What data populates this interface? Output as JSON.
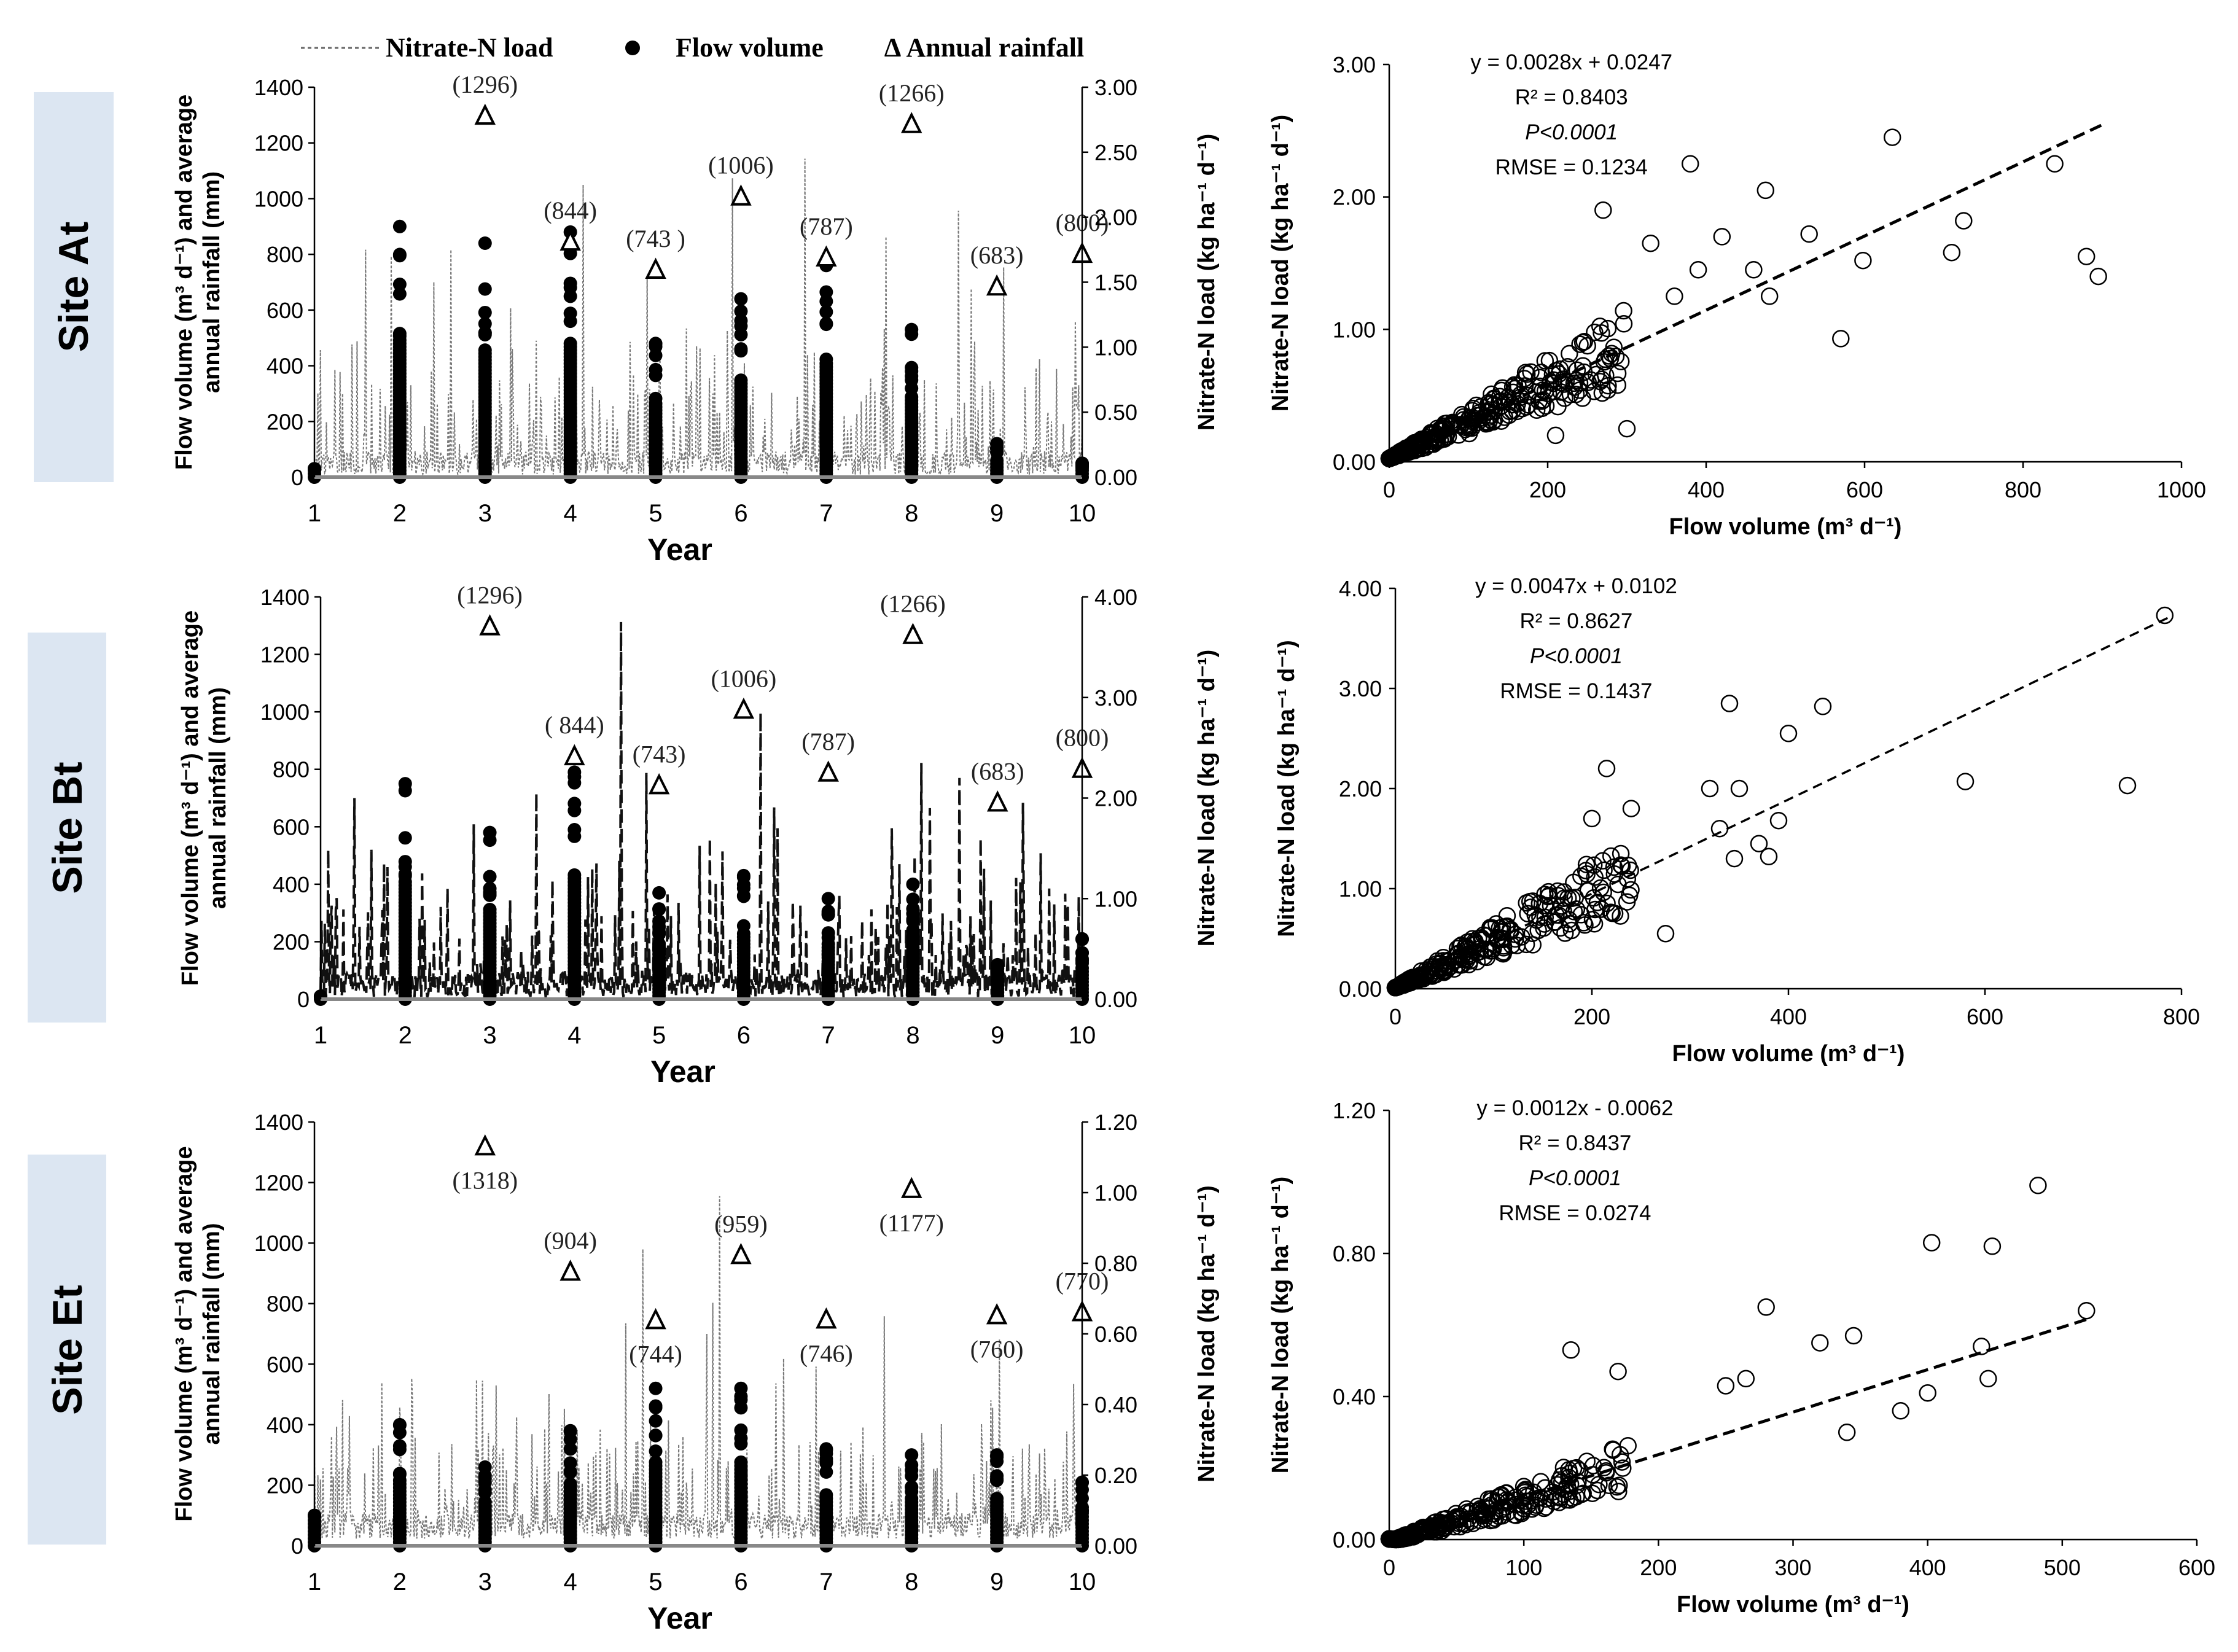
{
  "legend": {
    "nitrate": "Nitrate-N load",
    "flow": "Flow volume",
    "rainfall": "∆ Annual rainfall"
  },
  "sites": [
    {
      "label": "Site At"
    },
    {
      "label": "Site Bt"
    },
    {
      "label": "Site Et"
    }
  ],
  "chart_data": [
    {
      "type": "line",
      "site": "Site At",
      "xlabel": "Year",
      "ylabel_left": "Flow volume (m³ d⁻¹) and average annual rainfall (mm)",
      "ylabel_right": "Nitrate-N load (kg ha⁻¹ d⁻¹)",
      "xticks": [
        "1",
        "2",
        "3",
        "4",
        "5",
        "6",
        "7",
        "8",
        "9",
        "10"
      ],
      "yticks_left": [
        "0",
        "200",
        "400",
        "600",
        "800",
        "1000",
        "1200",
        "1400"
      ],
      "yticks_right": [
        "0.00",
        "0.50",
        "1.00",
        "1.50",
        "2.00",
        "2.50",
        "3.00"
      ],
      "ylim_left": [
        0,
        1400
      ],
      "ylim_right": [
        0,
        3.0
      ],
      "nitrate_style": "dotted",
      "rainfall": [
        {
          "year": 3,
          "value": 1296,
          "label": "(1296)"
        },
        {
          "year": 4,
          "value": 844,
          "label": "(844)"
        },
        {
          "year": 5,
          "value": 743,
          "label": "(743 )"
        },
        {
          "year": 6,
          "value": 1006,
          "label": "(1006)"
        },
        {
          "year": 7,
          "value": 787,
          "label": "(787)"
        },
        {
          "year": 8,
          "value": 1266,
          "label": "(1266)"
        },
        {
          "year": 9,
          "value": 683,
          "label": "(683)"
        },
        {
          "year": 10,
          "value": 800,
          "label": "(800)"
        }
      ],
      "flow_max": [
        30,
        900,
        840,
        880,
        480,
        640,
        760,
        530,
        120,
        50
      ],
      "nitrate_peaks": [
        {
          "x": 1.6,
          "v": 1.75
        },
        {
          "x": 1.9,
          "v": 1.7
        },
        {
          "x": 2.4,
          "v": 1.5
        },
        {
          "x": 2.6,
          "v": 1.75
        },
        {
          "x": 3.3,
          "v": 1.3
        },
        {
          "x": 3.6,
          "v": 1.05
        },
        {
          "x": 4.15,
          "v": 2.25
        },
        {
          "x": 4.9,
          "v": 1.55
        },
        {
          "x": 5.9,
          "v": 2.3
        },
        {
          "x": 6.75,
          "v": 2.45
        },
        {
          "x": 7.7,
          "v": 1.85
        },
        {
          "x": 8.55,
          "v": 2.05
        },
        {
          "x": 8.7,
          "v": 1.45
        },
        {
          "x": 9.6,
          "v": 0.5
        }
      ],
      "scatter": {
        "xlabel": "Flow volume (m³ d⁻¹)",
        "ylabel": "Nitrate-N load (kg ha⁻¹ d⁻¹)",
        "xlim": [
          0,
          1000
        ],
        "ylim": [
          0,
          3.0
        ],
        "xticks": [
          "0",
          "200",
          "400",
          "600",
          "800",
          "1000"
        ],
        "yticks": [
          "0.00",
          "1.00",
          "2.00",
          "3.00"
        ],
        "slope": 0.0028,
        "intercept": 0.0247,
        "trend_xmax": 900,
        "trend_style": "dashed-bold",
        "stats": {
          "eq": "y = 0.0028x + 0.0247",
          "r2": "R² = 0.8403",
          "p": "P<0.0001",
          "rmse": "RMSE = 0.1234"
        },
        "outliers": [
          [
            380,
            2.25
          ],
          [
            635,
            2.45
          ],
          [
            840,
            2.25
          ],
          [
            880,
            1.55
          ],
          [
            895,
            1.4
          ],
          [
            725,
            1.82
          ],
          [
            710,
            1.58
          ],
          [
            598,
            1.52
          ],
          [
            570,
            0.93
          ],
          [
            530,
            1.72
          ],
          [
            475,
            2.05
          ],
          [
            270,
            1.9
          ],
          [
            390,
            1.45
          ],
          [
            420,
            1.7
          ],
          [
            460,
            1.45
          ],
          [
            480,
            1.25
          ],
          [
            360,
            1.25
          ],
          [
            300,
            0.25
          ],
          [
            210,
            0.2
          ],
          [
            330,
            1.65
          ]
        ]
      }
    },
    {
      "type": "line",
      "site": "Site Bt",
      "xlabel": "Year",
      "ylabel_left": "Flow volume (m³ d⁻¹) and average annual rainfall (mm)",
      "ylabel_right": "Nitrate-N load (kg ha⁻¹ d⁻¹)",
      "xticks": [
        "1",
        "2",
        "3",
        "4",
        "5",
        "6",
        "7",
        "8",
        "9",
        "10"
      ],
      "yticks_left": [
        "0",
        "200",
        "400",
        "600",
        "800",
        "1000",
        "1200",
        "1400"
      ],
      "yticks_right": [
        "0.00",
        "1.00",
        "2.00",
        "3.00",
        "4.00"
      ],
      "ylim_left": [
        0,
        1400
      ],
      "ylim_right": [
        0,
        4.0
      ],
      "nitrate_style": "dashed",
      "rainfall": [
        {
          "year": 3,
          "value": 1296,
          "label": "(1296)"
        },
        {
          "year": 4,
          "value": 844,
          "label": "( 844)"
        },
        {
          "year": 5,
          "value": 743,
          "label": "(743)"
        },
        {
          "year": 6,
          "value": 1006,
          "label": "(1006)"
        },
        {
          "year": 7,
          "value": 787,
          "label": "(787)"
        },
        {
          "year": 8,
          "value": 1266,
          "label": "(1266)"
        },
        {
          "year": 9,
          "value": 683,
          "label": "(683)"
        },
        {
          "year": 10,
          "value": 800,
          "label": "(800)"
        }
      ],
      "flow_max": [
        10,
        750,
        580,
        790,
        370,
        430,
        350,
        400,
        120,
        210
      ],
      "nitrate_peaks": [
        {
          "x": 1.4,
          "v": 2.0
        },
        {
          "x": 1.75,
          "v": 1.35
        },
        {
          "x": 2.2,
          "v": 1.25
        },
        {
          "x": 2.5,
          "v": 1.1
        },
        {
          "x": 3.55,
          "v": 2.05
        },
        {
          "x": 4.55,
          "v": 3.75
        },
        {
          "x": 4.85,
          "v": 2.25
        },
        {
          "x": 5.6,
          "v": 1.6
        },
        {
          "x": 6.2,
          "v": 2.85
        },
        {
          "x": 6.4,
          "v": 1.7
        },
        {
          "x": 7.75,
          "v": 1.7
        },
        {
          "x": 8.2,
          "v": 1.9
        },
        {
          "x": 8.55,
          "v": 2.2
        },
        {
          "x": 8.8,
          "v": 1.6
        },
        {
          "x": 9.8,
          "v": 1.05
        }
      ],
      "scatter": {
        "xlabel": "Flow volume (m³ d⁻¹)",
        "ylabel": "Nitrate-N load (kg ha⁻¹ d⁻¹)",
        "xlim": [
          0,
          800
        ],
        "ylim": [
          0,
          4.0
        ],
        "xticks": [
          "0",
          "200",
          "400",
          "600",
          "800"
        ],
        "yticks": [
          "0.00",
          "1.00",
          "2.00",
          "3.00",
          "4.00"
        ],
        "slope": 0.0047,
        "intercept": 0.0102,
        "trend_xmax": 790,
        "trend_style": "dashed",
        "stats": {
          "eq": "y = 0.0047x + 0.0102",
          "r2": "R² = 0.8627",
          "p": "P<0.0001",
          "rmse": "RMSE = 0.1437"
        },
        "outliers": [
          [
            783,
            3.73
          ],
          [
            340,
            2.85
          ],
          [
            400,
            2.55
          ],
          [
            435,
            2.82
          ],
          [
            580,
            2.07
          ],
          [
            745,
            2.03
          ],
          [
            215,
            2.2
          ],
          [
            320,
            2.0
          ],
          [
            350,
            2.0
          ],
          [
            390,
            1.68
          ],
          [
            370,
            1.45
          ],
          [
            380,
            1.32
          ],
          [
            275,
            0.55
          ],
          [
            240,
            1.8
          ],
          [
            200,
            1.7
          ],
          [
            330,
            1.6
          ],
          [
            345,
            1.3
          ]
        ]
      }
    },
    {
      "type": "line",
      "site": "Site Et",
      "xlabel": "Year",
      "ylabel_left": "Flow volume (m³ d⁻¹) and average annual rainfall (mm)",
      "ylabel_right": "Nitrate-N load (kg ha⁻¹ d⁻¹)",
      "xticks": [
        "1",
        "2",
        "3",
        "4",
        "5",
        "6",
        "7",
        "8",
        "9",
        "10"
      ],
      "yticks_left": [
        "0",
        "200",
        "400",
        "600",
        "800",
        "1000",
        "1200",
        "1400"
      ],
      "yticks_right": [
        "0.00",
        "0.20",
        "0.40",
        "0.60",
        "0.80",
        "1.00",
        "1.20"
      ],
      "ylim_left": [
        0,
        1400
      ],
      "ylim_right": [
        0,
        1.2
      ],
      "nitrate_style": "dotted",
      "rainfall": [
        {
          "year": 3,
          "value": 1318,
          "label": "(1318)",
          "below": true
        },
        {
          "year": 4,
          "value": 904,
          "label": "(904)"
        },
        {
          "year": 5,
          "value": 744,
          "label": "(744)",
          "below": true
        },
        {
          "year": 6,
          "value": 959,
          "label": "(959)"
        },
        {
          "year": 7,
          "value": 746,
          "label": "(746)",
          "below": true
        },
        {
          "year": 8,
          "value": 1177,
          "label": "(1177)",
          "below": true
        },
        {
          "year": 9,
          "value": 760,
          "label": "(760)",
          "below": true
        },
        {
          "year": 10,
          "value": 770,
          "label": "(770)"
        }
      ],
      "flow_max": [
        100,
        400,
        260,
        380,
        520,
        520,
        320,
        300,
        300,
        210
      ],
      "nitrate_peaks": [
        {
          "x": 2.15,
          "v": 0.41
        },
        {
          "x": 2.9,
          "v": 0.47
        },
        {
          "x": 3.75,
          "v": 0.43
        },
        {
          "x": 4.65,
          "v": 0.63
        },
        {
          "x": 4.85,
          "v": 0.84
        },
        {
          "x": 5.75,
          "v": 0.99
        },
        {
          "x": 5.6,
          "v": 0.6
        },
        {
          "x": 6.5,
          "v": 0.53
        },
        {
          "x": 7.4,
          "v": 0.26
        },
        {
          "x": 8.3,
          "v": 0.22
        }
      ],
      "scatter": {
        "xlabel": "Flow volume (m³ d⁻¹)",
        "ylabel": "Nitrate-N load (kg ha⁻¹ d⁻¹)",
        "xlim": [
          0,
          600
        ],
        "ylim": [
          0,
          1.2
        ],
        "xticks": [
          "0",
          "100",
          "200",
          "300",
          "400",
          "500",
          "600"
        ],
        "yticks": [
          "0.00",
          "0.40",
          "0.80",
          "1.20"
        ],
        "slope": 0.0012,
        "intercept": -0.0062,
        "trend_xmax": 520,
        "trend_style": "dashed-bold",
        "stats": {
          "eq": "y = 0.0012x - 0.0062",
          "r2": "R² = 0.8437",
          "p": "P<0.0001",
          "rmse": "RMSE = 0.0274"
        },
        "outliers": [
          [
            482,
            0.99
          ],
          [
            403,
            0.83
          ],
          [
            448,
            0.82
          ],
          [
            518,
            0.64
          ],
          [
            135,
            0.53
          ],
          [
            280,
            0.65
          ],
          [
            320,
            0.55
          ],
          [
            345,
            0.57
          ],
          [
            440,
            0.54
          ],
          [
            445,
            0.45
          ],
          [
            380,
            0.36
          ],
          [
            400,
            0.41
          ],
          [
            250,
            0.43
          ],
          [
            265,
            0.45
          ],
          [
            170,
            0.47
          ],
          [
            340,
            0.3
          ]
        ]
      }
    }
  ]
}
